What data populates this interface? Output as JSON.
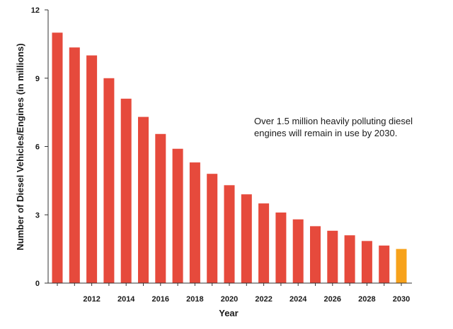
{
  "chart_data": {
    "type": "bar",
    "title": "",
    "xlabel": "Year",
    "ylabel": "Number of Diesel Vehicles/Engines (in millions)",
    "ylim": [
      0,
      12
    ],
    "yticks": [
      "0",
      "3",
      "6",
      "9",
      "12"
    ],
    "grid": false,
    "legend": "none",
    "categories": [
      "2010",
      "2011",
      "2012",
      "2013",
      "2014",
      "2015",
      "2016",
      "2017",
      "2018",
      "2019",
      "2020",
      "2021",
      "2022",
      "2023",
      "2024",
      "2025",
      "2026",
      "2027",
      "2028",
      "2029",
      "2030"
    ],
    "xtick_labels": [
      "2012",
      "2014",
      "2016",
      "2018",
      "2020",
      "2022",
      "2024",
      "2026",
      "2028",
      "2030"
    ],
    "values": [
      11.0,
      10.35,
      10.0,
      9.0,
      8.1,
      7.3,
      6.55,
      5.9,
      5.3,
      4.8,
      4.3,
      3.9,
      3.5,
      3.1,
      2.8,
      2.5,
      2.3,
      2.1,
      1.85,
      1.65,
      1.5
    ],
    "highlight_category": "2030",
    "annotation": [
      "Over 1.5 million heavily polluting diesel",
      "engines will remain in use by 2030."
    ],
    "colors": {
      "bar": "#e64a3c",
      "highlight": "#f7a21b",
      "axis": "#333333",
      "text": "#1a1a1a"
    }
  }
}
